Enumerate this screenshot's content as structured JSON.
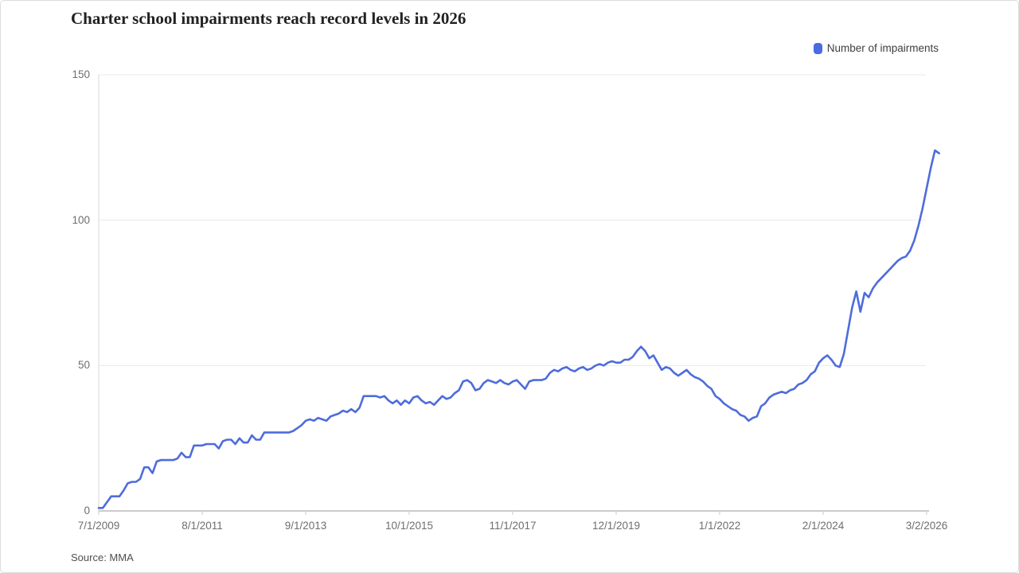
{
  "chart": {
    "title": "Charter school impairments reach record levels in 2026",
    "legend_label": "Number of impairments",
    "source": "Source: MMA"
  },
  "colors": {
    "line": "#4e6cdb",
    "legend_swatch": "#4a6be2",
    "gridline": "#eaeaea",
    "baseline": "#9a9a9a",
    "axis_line": "#d9d9d9",
    "tick_mark": "#c9c9c9"
  },
  "chart_data": {
    "type": "line",
    "title": "Charter school impairments reach record levels in 2026",
    "xlabel": "",
    "ylabel": "",
    "legend_position": "top-right",
    "grid": "horizontal",
    "ylim": [
      0,
      150
    ],
    "y_ticks": [
      0,
      50,
      100,
      150
    ],
    "x_start": "7/1/2009",
    "x_frequency": "monthly",
    "x_ticks": [
      {
        "label": "7/1/2009",
        "month": 0
      },
      {
        "label": "8/1/2011",
        "month": 25
      },
      {
        "label": "9/1/2013",
        "month": 50
      },
      {
        "label": "10/1/2015",
        "month": 75
      },
      {
        "label": "11/1/2017",
        "month": 100
      },
      {
        "label": "12/1/2019",
        "month": 125
      },
      {
        "label": "1/1/2022",
        "month": 150
      },
      {
        "label": "2/1/2024",
        "month": 175
      },
      {
        "label": "3/2/2026",
        "month": 200
      }
    ],
    "series": [
      {
        "name": "Number of impairments",
        "values": [
          1,
          1,
          3,
          5,
          5,
          5,
          7,
          9.5,
          10,
          10,
          11,
          15,
          15,
          13,
          17,
          17.5,
          17.5,
          17.5,
          17.5,
          18,
          20,
          18.5,
          18.5,
          22.5,
          22.5,
          22.5,
          23,
          23,
          23,
          21.5,
          24,
          24.5,
          24.5,
          23,
          25,
          23.5,
          23.5,
          26,
          24.5,
          24.5,
          27,
          27,
          27,
          27,
          27,
          27,
          27,
          27.5,
          28.5,
          29.5,
          31,
          31.5,
          31,
          32,
          31.5,
          31,
          32.5,
          33,
          33.5,
          34.5,
          34,
          35,
          34,
          35.5,
          39.5,
          39.5,
          39.5,
          39.5,
          39,
          39.5,
          38,
          37,
          38,
          36.5,
          38,
          37,
          39,
          39.5,
          38,
          37,
          37.5,
          36.5,
          38,
          39.5,
          38.5,
          39,
          40.5,
          41.5,
          44.5,
          45,
          44,
          41.5,
          42,
          44,
          45,
          44.5,
          44,
          45,
          44,
          43.5,
          44.5,
          45,
          43.5,
          42,
          44.5,
          45,
          45,
          45,
          45.5,
          47.5,
          48.5,
          48,
          49,
          49.5,
          48.5,
          48,
          49,
          49.5,
          48.5,
          49,
          50,
          50.5,
          50,
          51,
          51.5,
          51,
          51,
          52,
          52,
          53,
          55,
          56.5,
          55,
          52.5,
          53.5,
          51,
          48.5,
          49.5,
          49,
          47.5,
          46.5,
          47.5,
          48.5,
          47,
          46,
          45.5,
          44.5,
          43,
          42,
          39.5,
          38.5,
          37,
          36,
          35,
          34.5,
          33,
          32.5,
          31,
          32,
          32.5,
          36,
          37,
          39,
          40,
          40.5,
          41,
          40.5,
          41.5,
          42,
          43.5,
          44,
          45,
          47,
          48,
          51,
          52.5,
          53.5,
          52,
          50,
          49.5,
          54,
          62,
          70,
          75.5,
          68.5,
          75,
          73.5,
          76.5,
          78.5,
          80,
          81.5,
          83,
          84.5,
          86,
          87,
          87.5,
          89.5,
          93,
          98,
          104,
          111,
          118,
          124,
          123
        ]
      }
    ]
  }
}
